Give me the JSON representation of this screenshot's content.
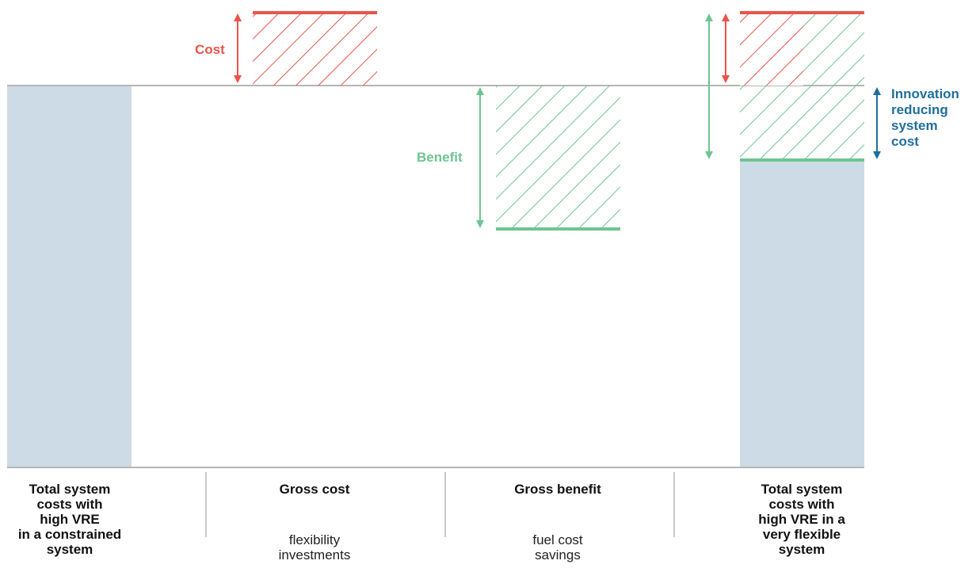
{
  "annotations": {
    "cost": "Cost",
    "benefit": "Benefit",
    "innovation": [
      "Innovation",
      "reducing",
      "system",
      "cost"
    ]
  },
  "columns": [
    {
      "title": [
        "Total system",
        "costs with",
        "high VRE",
        "in a constrained",
        "system"
      ],
      "subtitle": []
    },
    {
      "title": [
        "Gross cost"
      ],
      "subtitle": [
        "flexibility",
        "investments"
      ]
    },
    {
      "title": [
        "Gross benefit"
      ],
      "subtitle": [
        "fuel cost",
        "savings"
      ]
    },
    {
      "title": [
        "Total system",
        "costs with",
        "high VRE in a",
        "very flexible",
        "system"
      ],
      "subtitle": []
    }
  ],
  "colors": {
    "bar": "#cddbe6",
    "cost": "#e8554a",
    "benefit": "#6dc593",
    "innovation": "#1f6f9c",
    "baseline": "#b5b5b5"
  }
}
